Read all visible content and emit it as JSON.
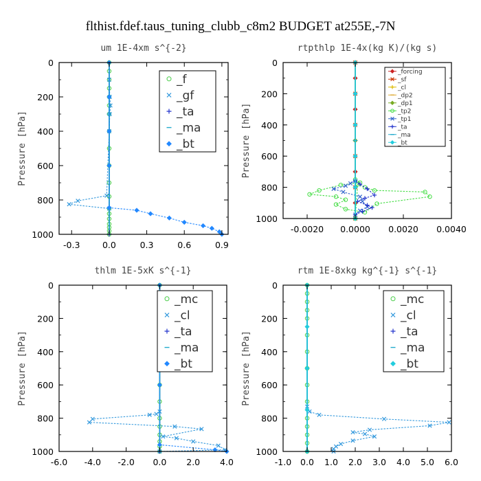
{
  "figure_title": "flthist.fdef.taus_tuning_clubb_c8m2  BUDGET at255E,-7N",
  "chart_data": [
    {
      "type": "line",
      "title": "um   1E-4xm s^{-2}",
      "ylabel": "Pressure [hPa]",
      "xlim": [
        -0.4,
        0.95
      ],
      "ylim": [
        1000,
        0
      ],
      "xticks": [
        "-0.3",
        "0.0",
        "0.3",
        "0.6",
        "0.9"
      ],
      "xtick_values": [
        -0.3,
        0.0,
        0.3,
        0.6,
        0.9
      ],
      "yticks": [
        "0",
        "200",
        "400",
        "600",
        "800",
        "1000"
      ],
      "ytick_values": [
        0,
        200,
        400,
        600,
        800,
        1000
      ],
      "legend_style": "big",
      "series": [
        {
          "name": "_f",
          "color": "#44cc44",
          "marker": "circle",
          "x": [
            0,
            0,
            0,
            0,
            0,
            0,
            0,
            0,
            0,
            0,
            0,
            0,
            0,
            0,
            0,
            0,
            0,
            0,
            0
          ],
          "y": [
            0,
            50,
            100,
            150,
            200,
            250,
            300,
            400,
            500,
            600,
            700,
            780,
            850,
            880,
            910,
            940,
            960,
            980,
            1000
          ]
        },
        {
          "name": "_gf",
          "color": "#3399dd",
          "marker": "x",
          "x": [
            0,
            0.005,
            0.01,
            0.005,
            0,
            -0.02,
            -0.25,
            -0.32,
            0
          ],
          "y": [
            100,
            200,
            250,
            300,
            400,
            775,
            805,
            825,
            850
          ]
        },
        {
          "name": "_ta",
          "color": "#2233cc",
          "marker": "plus",
          "x": [
            0,
            0,
            0,
            0
          ],
          "y": [
            0,
            300,
            600,
            1000
          ]
        },
        {
          "name": "_ma",
          "color": "#22aacc",
          "marker": "dash",
          "x": [
            0,
            0,
            0,
            0
          ],
          "y": [
            0,
            300,
            600,
            1000
          ]
        },
        {
          "name": "_bt",
          "color": "#2288ff",
          "marker": "diamond",
          "x": [
            0,
            0,
            0,
            0,
            0,
            0.22,
            0.33,
            0.48,
            0.6,
            0.75,
            0.82,
            0.88,
            0.9
          ],
          "y": [
            0,
            200,
            400,
            600,
            845,
            860,
            880,
            905,
            930,
            950,
            965,
            985,
            1000
          ]
        }
      ]
    },
    {
      "type": "line",
      "title": "rtpthlp  1E-4x(kg K)/(kg s)",
      "ylabel": "Pressure [hPa]",
      "xlim": [
        -0.003,
        0.004
      ],
      "ylim": [
        1000,
        0
      ],
      "xticks": [
        "-0.0020",
        "0.0000",
        "0.0020",
        "0.0040"
      ],
      "xtick_values": [
        -0.002,
        0.0,
        0.002,
        0.004
      ],
      "yticks": [
        "0",
        "200",
        "400",
        "600",
        "800",
        "1000"
      ],
      "ytick_values": [
        0,
        200,
        400,
        600,
        800,
        1000
      ],
      "legend_style": "small",
      "series": [
        {
          "name": "_forcing",
          "color": "#cc2222",
          "marker": "diamond",
          "x": [
            0,
            0,
            0,
            0,
            0,
            0,
            0,
            0,
            0,
            0,
            0
          ],
          "y": [
            0,
            100,
            200,
            300,
            400,
            500,
            600,
            700,
            800,
            900,
            1000
          ]
        },
        {
          "name": "_sf",
          "color": "#cc3300",
          "marker": "x",
          "x": [
            0,
            0,
            0,
            0,
            0,
            0
          ],
          "y": [
            0,
            200,
            400,
            600,
            800,
            1000
          ]
        },
        {
          "name": "_cl",
          "color": "#ddbb00",
          "marker": "plus",
          "x": [
            0,
            0,
            0,
            0
          ],
          "y": [
            0,
            400,
            800,
            1000
          ]
        },
        {
          "name": "_dp2",
          "color": "#ddaa33",
          "marker": "dash",
          "x": [
            0,
            0,
            0
          ],
          "y": [
            0,
            500,
            1000
          ]
        },
        {
          "name": "_dp1",
          "color": "#77aa22",
          "marker": "diamond",
          "x": [
            0,
            0,
            0
          ],
          "y": [
            0,
            500,
            1000
          ]
        },
        {
          "name": "_tp2",
          "color": "#44dd44",
          "marker": "circle",
          "x": [
            0,
            0.0002,
            -0.0006,
            -0.0015,
            -0.0019,
            -0.0008,
            -0.0004,
            -0.0008,
            -0.0004,
            0.0004,
            0.0009,
            0.0031,
            0.0029,
            0.0008,
            0.0004,
            0.0001,
            0
          ],
          "y": [
            750,
            770,
            785,
            820,
            845,
            860,
            880,
            910,
            940,
            960,
            905,
            860,
            830,
            820,
            800,
            780,
            1000
          ]
        },
        {
          "name": "_tp1",
          "color": "#3366cc",
          "marker": "x",
          "x": [
            0,
            -0.0002,
            -0.0004,
            -0.0009,
            -0.0005,
            0.0002,
            0.0003,
            0.0005,
            0.0002,
            0
          ],
          "y": [
            760,
            775,
            790,
            810,
            830,
            860,
            890,
            925,
            950,
            975
          ]
        },
        {
          "name": "_ta",
          "color": "#2233cc",
          "marker": "plus",
          "x": [
            0,
            0.0002,
            0.0005,
            0.0008,
            0.0004,
            0.0001,
            0.0005,
            0.0007,
            0.0003,
            0
          ],
          "y": [
            760,
            780,
            810,
            850,
            870,
            890,
            915,
            930,
            955,
            975
          ]
        },
        {
          "name": "_ma",
          "color": "#22aacc",
          "marker": "dash",
          "x": [
            0,
            0,
            0
          ],
          "y": [
            0,
            500,
            1000
          ]
        },
        {
          "name": "_bt",
          "color": "#22ccdd",
          "marker": "diamond",
          "x": [
            0,
            0,
            0,
            0,
            0,
            0
          ],
          "y": [
            0,
            200,
            400,
            600,
            800,
            1000
          ]
        }
      ]
    },
    {
      "type": "line",
      "title": "thlm   1E-5xK s^{-1}",
      "ylabel": "Pressure [hPa]",
      "xlim": [
        -6.0,
        4.0
      ],
      "ylim": [
        1000,
        0
      ],
      "xticks": [
        "-6.0",
        "-4.0",
        "-2.0",
        "0.0",
        "2.0",
        "4.0"
      ],
      "xtick_values": [
        -6,
        -4,
        -2,
        0,
        2,
        4
      ],
      "yticks": [
        "0",
        "200",
        "400",
        "600",
        "800",
        "1000"
      ],
      "ytick_values": [
        0,
        200,
        400,
        600,
        800,
        1000
      ],
      "legend_style": "big",
      "series": [
        {
          "name": "_mc",
          "color": "#44cc44",
          "marker": "circle",
          "x": [
            0,
            0,
            0,
            0,
            0,
            0,
            0,
            0,
            0,
            0,
            0,
            0,
            0,
            0,
            0,
            0
          ],
          "y": [
            0,
            50,
            100,
            150,
            200,
            300,
            400,
            500,
            600,
            700,
            800,
            850,
            900,
            940,
            970,
            1000
          ]
        },
        {
          "name": "_cl",
          "color": "#3399dd",
          "marker": "x",
          "x": [
            0,
            -0.2,
            -0.6,
            -4.0,
            -4.2,
            0.9,
            2.5,
            0.2,
            1.0,
            2.0,
            3.5,
            3.9,
            0
          ],
          "y": [
            760,
            775,
            780,
            805,
            825,
            850,
            865,
            910,
            920,
            940,
            965,
            990,
            1000
          ]
        },
        {
          "name": "_ta",
          "color": "#2233cc",
          "marker": "plus",
          "x": [
            0,
            0,
            0
          ],
          "y": [
            0,
            500,
            1000
          ]
        },
        {
          "name": "_ma",
          "color": "#22aacc",
          "marker": "dash",
          "x": [
            0,
            0,
            0
          ],
          "y": [
            0,
            500,
            1000
          ]
        },
        {
          "name": "_bt",
          "color": "#2288ff",
          "marker": "diamond",
          "x": [
            0,
            0,
            0,
            0,
            3.3,
            4.0
          ],
          "y": [
            0,
            300,
            600,
            960,
            990,
            1000
          ]
        }
      ]
    },
    {
      "type": "line",
      "title": "rtm   1E-8xkg kg^{-1} s^{-1}",
      "ylabel": "Pressure [hPa]",
      "xlim": [
        -1.0,
        6.0
      ],
      "ylim": [
        1000,
        0
      ],
      "xticks": [
        "-1.0",
        "0.0",
        "1.0",
        "2.0",
        "3.0",
        "4.0",
        "5.0",
        "6.0"
      ],
      "xtick_values": [
        -1,
        0,
        1,
        2,
        3,
        4,
        5,
        6
      ],
      "yticks": [
        "0",
        "200",
        "400",
        "600",
        "800",
        "1000"
      ],
      "ytick_values": [
        0,
        200,
        400,
        600,
        800,
        1000
      ],
      "legend_style": "big",
      "series": [
        {
          "name": "_mc",
          "color": "#44cc44",
          "marker": "circle",
          "x": [
            0,
            0,
            0,
            0,
            0,
            0,
            0,
            0,
            0,
            0,
            0,
            0,
            0,
            0,
            0
          ],
          "y": [
            0,
            50,
            100,
            150,
            200,
            300,
            400,
            500,
            600,
            700,
            800,
            850,
            900,
            950,
            1000
          ]
        },
        {
          "name": "_cl",
          "color": "#3399dd",
          "marker": "x",
          "x": [
            0,
            0.1,
            0.5,
            3.2,
            5.9,
            5.1,
            2.6,
            1.9,
            2.4,
            2.8,
            1.9,
            1.4,
            1.2,
            1.1,
            1.1
          ],
          "y": [
            730,
            760,
            780,
            805,
            825,
            845,
            870,
            885,
            895,
            910,
            935,
            955,
            970,
            985,
            1000
          ]
        },
        {
          "name": "_ta",
          "color": "#2233cc",
          "marker": "plus",
          "x": [
            0,
            0,
            0
          ],
          "y": [
            0,
            500,
            1000
          ]
        },
        {
          "name": "_ma",
          "color": "#22aacc",
          "marker": "dash",
          "x": [
            0,
            0,
            0
          ],
          "y": [
            0,
            500,
            1000
          ]
        },
        {
          "name": "_bt",
          "color": "#22ccdd",
          "marker": "diamond",
          "x": [
            0,
            0,
            0,
            0,
            0
          ],
          "y": [
            0,
            250,
            500,
            750,
            1000
          ]
        }
      ]
    }
  ]
}
